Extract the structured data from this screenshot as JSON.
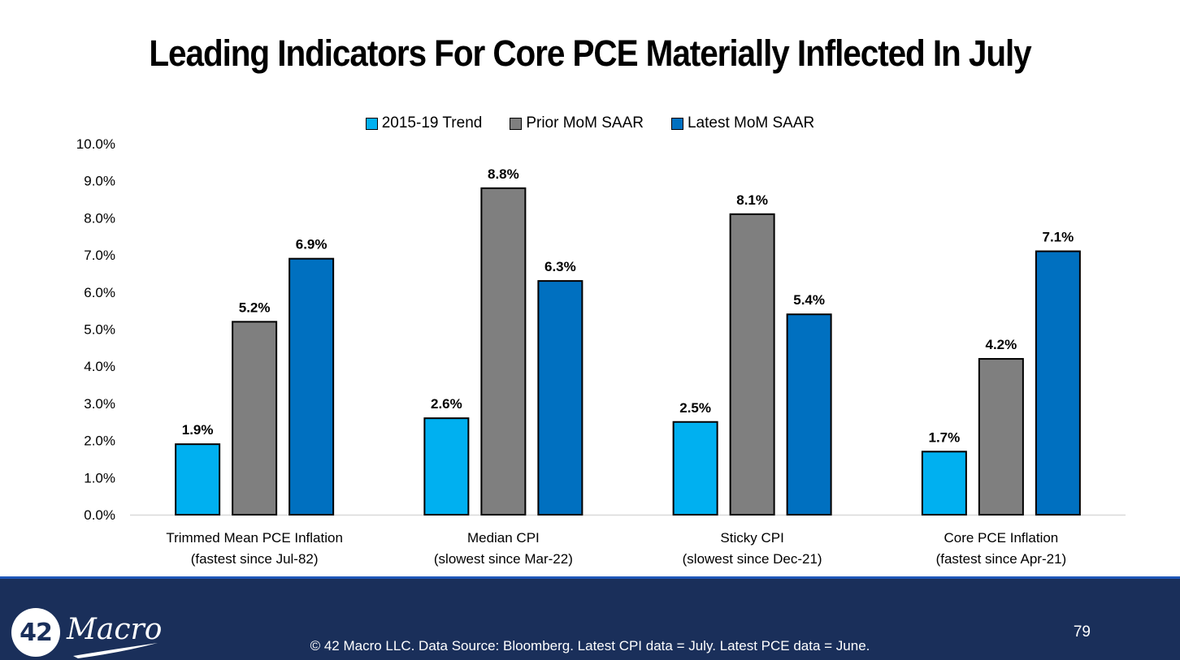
{
  "slide": {
    "title": "Leading Indicators For Core PCE Materially Inflected In July",
    "page_number": "79",
    "footer_text": "© 42 Macro LLC. Data Source: Bloomberg. Latest CPI data = July. Latest PCE data = June.",
    "logo": {
      "number": "42",
      "word": "Macro"
    }
  },
  "chart_data": {
    "type": "bar",
    "title": "Leading Indicators For Core PCE Materially Inflected In July",
    "xlabel": "",
    "ylabel": "",
    "ylim": [
      0,
      10
    ],
    "y_ticks": [
      "0.0%",
      "1.0%",
      "2.0%",
      "3.0%",
      "4.0%",
      "5.0%",
      "6.0%",
      "7.0%",
      "8.0%",
      "9.0%",
      "10.0%"
    ],
    "y_tick_values": [
      0,
      1,
      2,
      3,
      4,
      5,
      6,
      7,
      8,
      9,
      10
    ],
    "grid": false,
    "legend_position": "top-center",
    "categories": [
      [
        "Trimmed Mean PCE Inflation",
        "(fastest since Jul-82)"
      ],
      [
        "Median CPI",
        "(slowest since Mar-22)"
      ],
      [
        "Sticky CPI",
        "(slowest since Dec-21)"
      ],
      [
        "Core PCE Inflation",
        "(fastest since Apr-21)"
      ]
    ],
    "series": [
      {
        "name": "2015-19 Trend",
        "color": "#00B0F0",
        "values": [
          1.9,
          2.6,
          2.5,
          1.7
        ],
        "labels": [
          "1.9%",
          "2.6%",
          "2.5%",
          "1.7%"
        ]
      },
      {
        "name": "Prior MoM SAAR",
        "color": "#7F7F7F",
        "values": [
          5.2,
          8.8,
          8.1,
          4.2
        ],
        "labels": [
          "5.2%",
          "8.8%",
          "8.1%",
          "4.2%"
        ]
      },
      {
        "name": "Latest MoM SAAR",
        "color": "#0070C0",
        "values": [
          6.9,
          6.3,
          5.4,
          7.1
        ],
        "labels": [
          "6.9%",
          "6.3%",
          "5.4%",
          "7.1%"
        ]
      }
    ]
  }
}
